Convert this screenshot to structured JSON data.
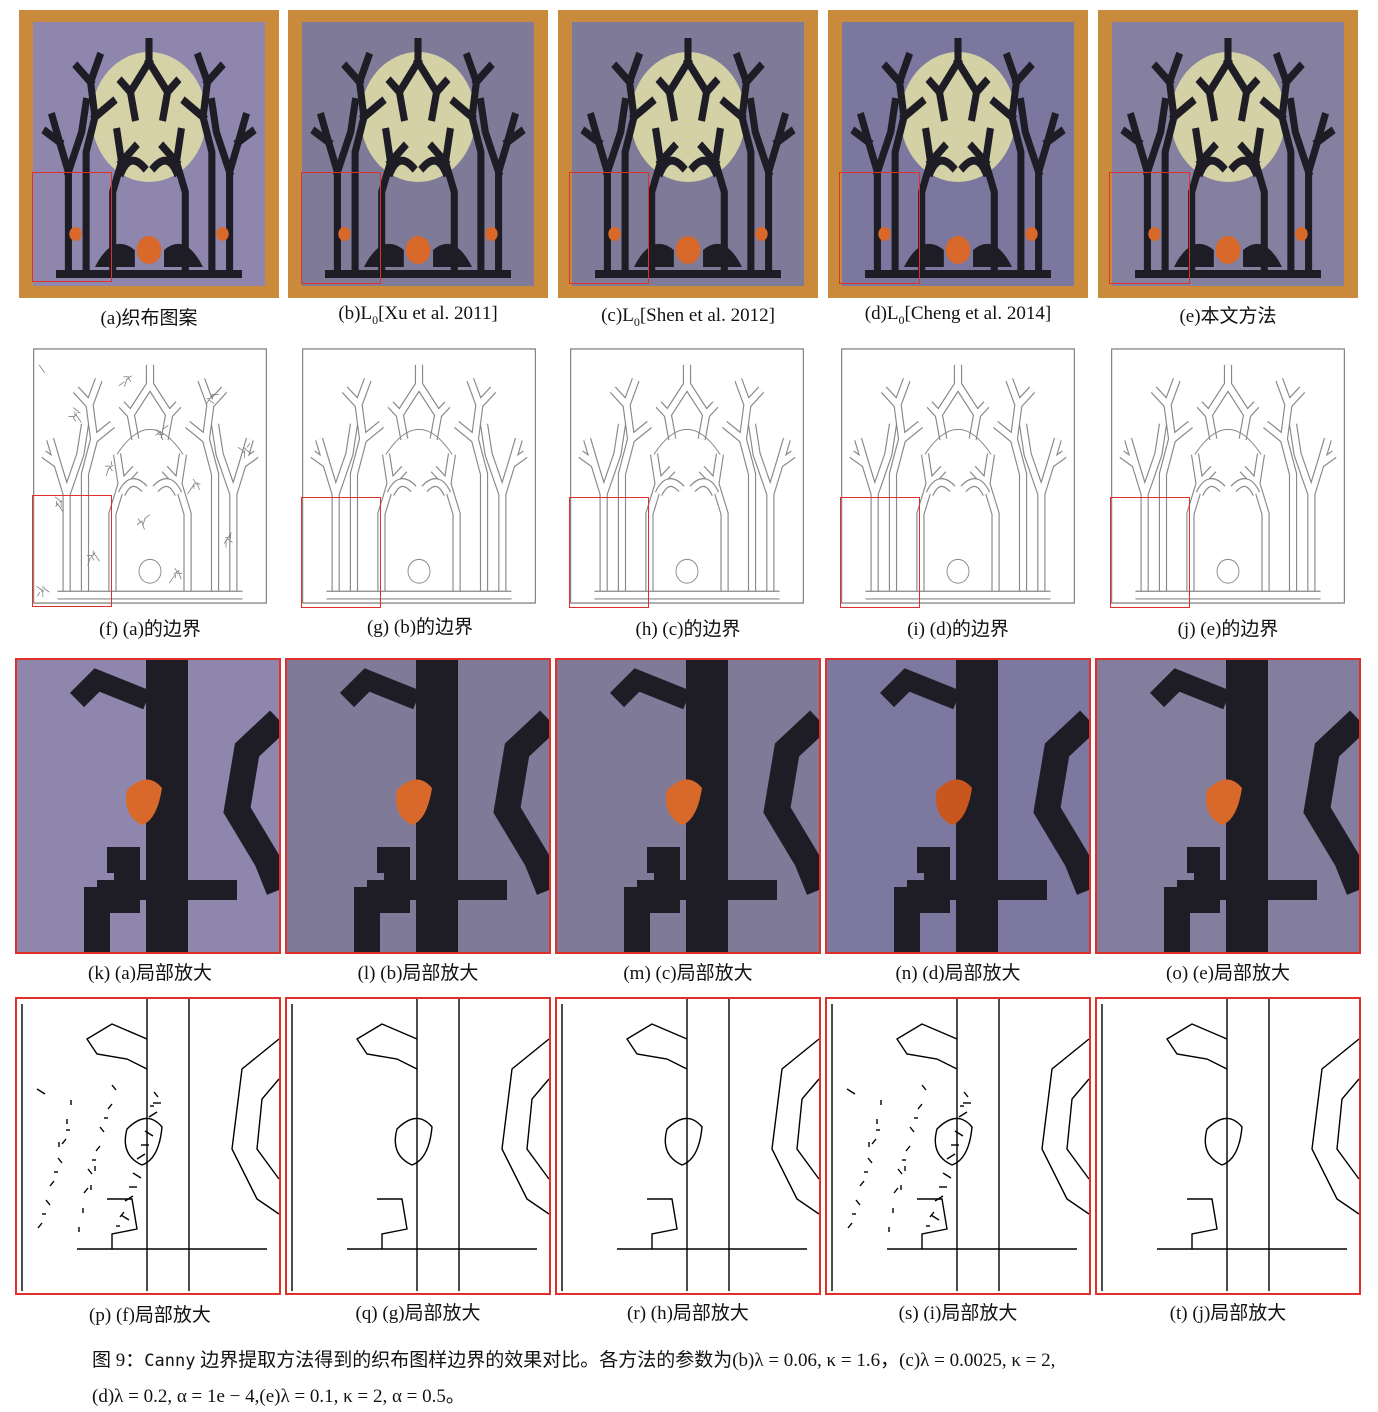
{
  "row1": [
    {
      "label": "(a)织布图案"
    },
    {
      "label_pre": "(b)L",
      "label_sub": "0",
      "label_post": "[Xu et al. 2011]"
    },
    {
      "label_pre": "(c)L",
      "label_sub": "0",
      "label_post": "[Shen et al. 2012]"
    },
    {
      "label_pre": "(d)L",
      "label_sub": "0",
      "label_post": "[Cheng et al. 2014]"
    },
    {
      "label": "(e)本文方法"
    }
  ],
  "row2": [
    "(f) (a)的边界",
    "(g) (b)的边界",
    "(h) (c)的边界",
    "(i) (d)的边界",
    "(j) (e)的边界"
  ],
  "row3": [
    "(k) (a)局部放大",
    "(l) (b)局部放大",
    "(m) (c)局部放大",
    "(n) (d)局部放大",
    "(o) (e)局部放大"
  ],
  "row4": [
    "(p) (f)局部放大",
    "(q) (g)局部放大",
    "(r) (h)局部放大",
    "(s) (i)局部放大",
    "(t) (j)局部放大"
  ],
  "figure_caption": {
    "line1_prefix": "图 9：",
    "line1_mono": "Canny",
    "line1_rest": " 边界提取方法得到的织布图样边界的效果对比。各方法的参数为(b)λ = 0.06, κ = 1.6，(c)λ = 0.0025, κ = 2,",
    "line2": "(d)λ = 0.2, α = 1e − 4,(e)λ = 0.1, κ = 2, α = 0.5。"
  },
  "colors": {
    "frame": "#c98a3c",
    "fabric": "#8e86ad",
    "moon": "#d9d6a6",
    "tree": "#1e1d25",
    "pumpkin": "#d8692a",
    "highlight_box": "#e0302a"
  }
}
